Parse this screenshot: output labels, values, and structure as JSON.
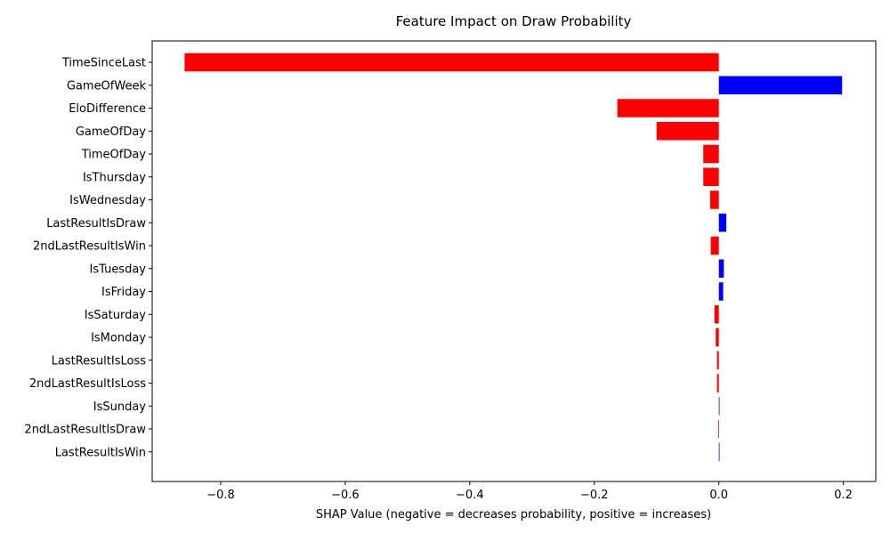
{
  "chart_data": {
    "type": "bar",
    "orientation": "horizontal",
    "title": "Feature Impact on Draw Probability",
    "xlabel": "SHAP Value (negative = decreases probability, positive = increases)",
    "ylabel": "",
    "xlim": [
      -0.91,
      0.252
    ],
    "xticks": [
      -0.8,
      -0.6,
      -0.4,
      -0.2,
      0.0,
      0.2
    ],
    "xtick_labels": [
      "−0.8",
      "−0.6",
      "−0.4",
      "−0.2",
      "0.0",
      "0.2"
    ],
    "grid": false,
    "categories": [
      "TimeSinceLast",
      "GameOfWeek",
      "EloDifference",
      "GameOfDay",
      "TimeOfDay",
      "IsThursday",
      "IsWednesday",
      "LastResultIsDraw",
      "2ndLastResultIsWin",
      "IsTuesday",
      "IsFriday",
      "IsSaturday",
      "IsMonday",
      "LastResultIsLoss",
      "2ndLastResultIsLoss",
      "IsSunday",
      "2ndLastResultIsDraw",
      "LastResultIsWin"
    ],
    "values": [
      -0.858,
      0.198,
      -0.163,
      -0.1,
      -0.025,
      -0.025,
      -0.014,
      0.012,
      -0.013,
      0.008,
      0.007,
      -0.007,
      -0.005,
      -0.003,
      -0.003,
      0.001,
      -0.001,
      0.0005
    ],
    "colors": {
      "negative": "#ff0000",
      "positive": "#0000ff"
    }
  }
}
